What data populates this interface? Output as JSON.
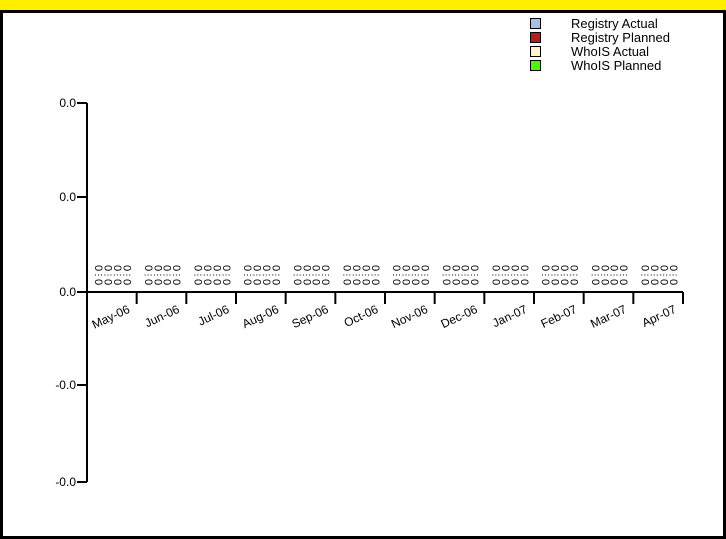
{
  "chart_data": {
    "type": "bar",
    "title": "",
    "xlabel": "",
    "ylabel": "",
    "categories": [
      "May-06",
      "Jun-06",
      "Jul-06",
      "Aug-06",
      "Sep-06",
      "Oct-06",
      "Nov-06",
      "Dec-06",
      "Jan-07",
      "Feb-07",
      "Mar-07",
      "Apr-07"
    ],
    "y_tick_labels": [
      "0.0",
      "0.0",
      "0.0",
      "-0.0",
      "-0.0"
    ],
    "series": [
      {
        "name": "Registry Actual",
        "color": "#a8bfe0",
        "values": [
          0,
          0,
          0,
          0,
          0,
          0,
          0,
          0,
          0,
          0,
          0,
          0
        ]
      },
      {
        "name": "Registry Planned",
        "color": "#b02020",
        "values": [
          0,
          0,
          0,
          0,
          0,
          0,
          0,
          0,
          0,
          0,
          0,
          0
        ]
      },
      {
        "name": "WhoIS Actual",
        "color": "#fff3d0",
        "values": [
          0,
          0,
          0,
          0,
          0,
          0,
          0,
          0,
          0,
          0,
          0,
          0
        ]
      },
      {
        "name": "WhoIS Planned",
        "color": "#44ff00",
        "values": [
          0,
          0,
          0,
          0,
          0,
          0,
          0,
          0,
          0,
          0,
          0,
          0
        ]
      }
    ],
    "data_label": "0",
    "legend_position": "top-right",
    "grid": false,
    "title_band_color": "#ffee00"
  }
}
